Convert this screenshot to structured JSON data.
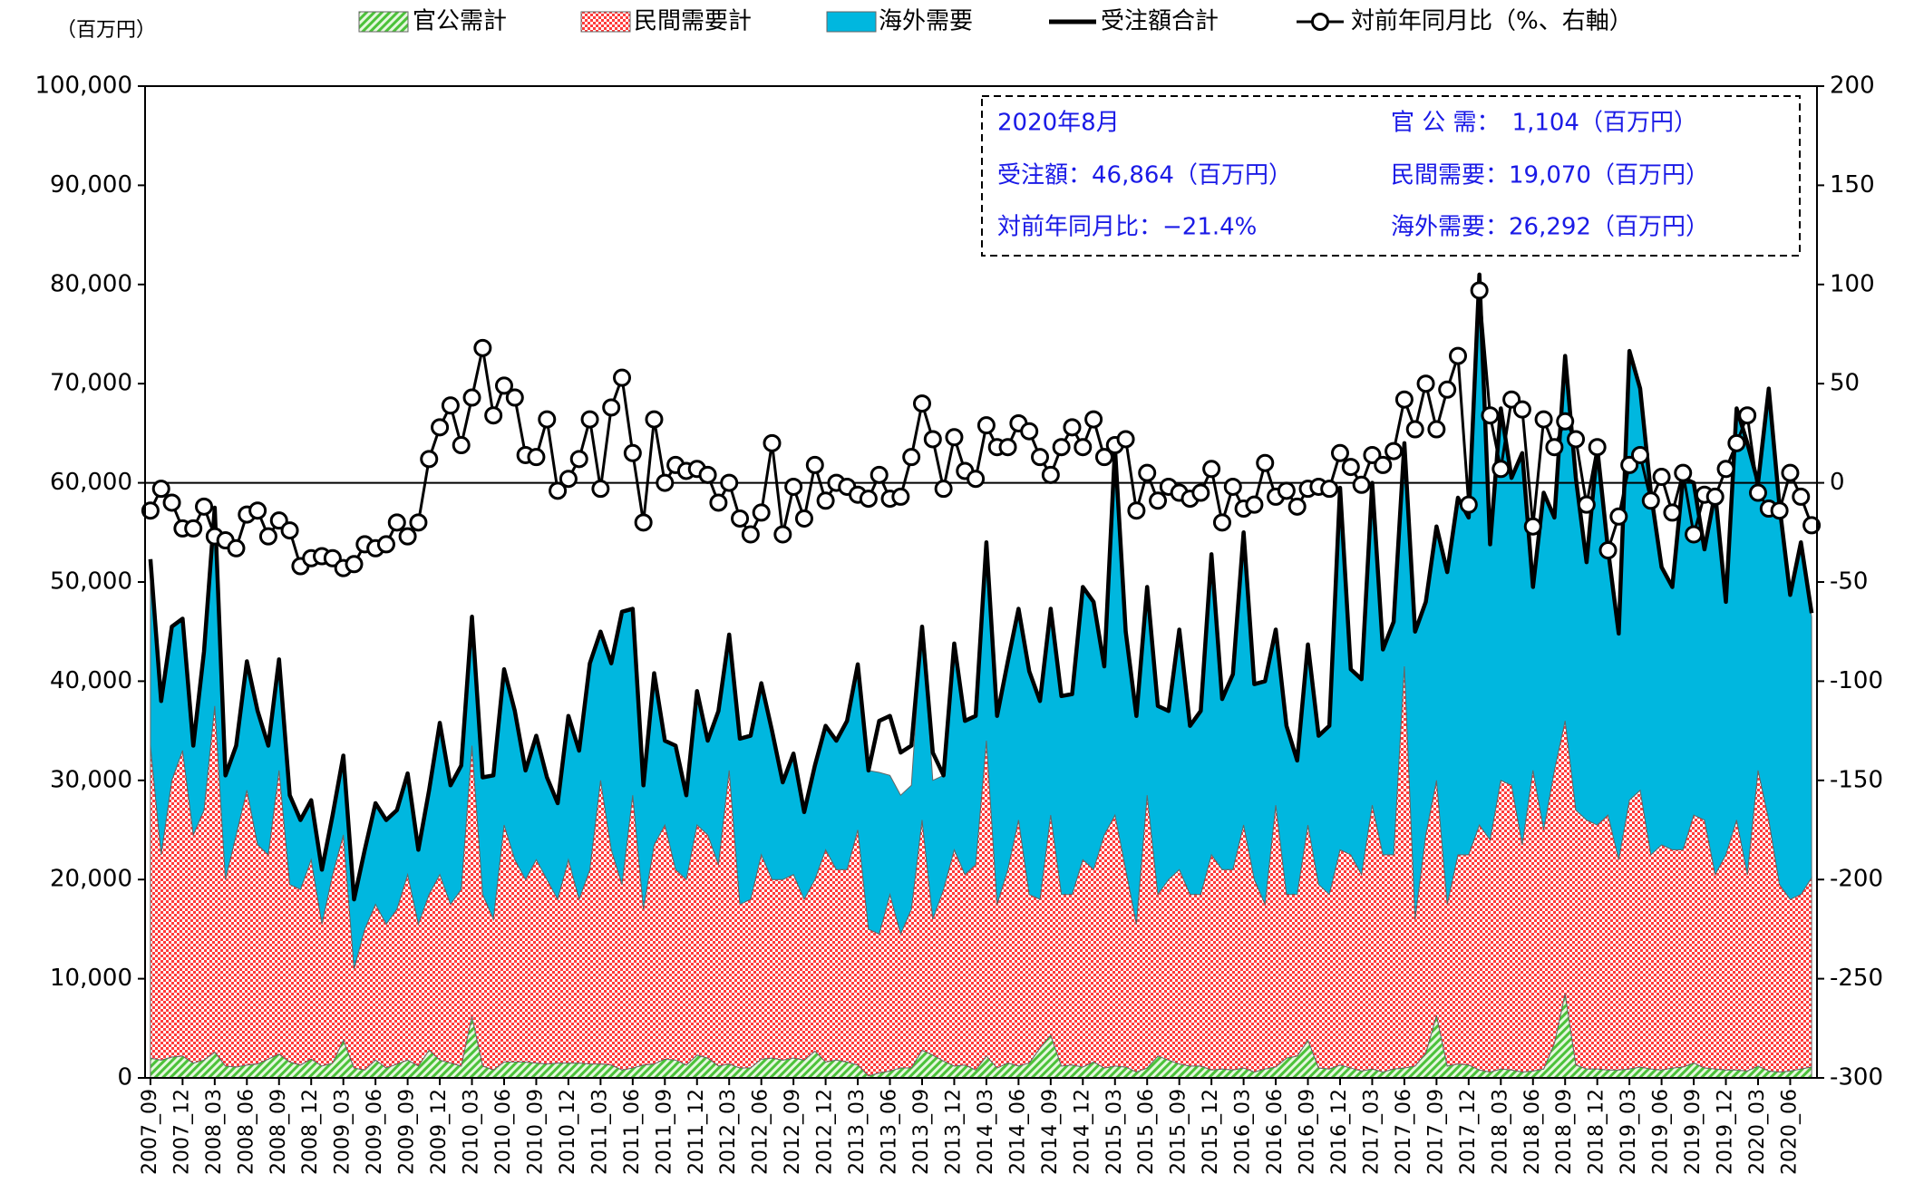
{
  "chart_data": {
    "type": "area",
    "y_label": "（百万円）",
    "categories": [
      "2007_09",
      null,
      null,
      "2007_12",
      null,
      null,
      "2008_03",
      null,
      null,
      "2008_06",
      null,
      null,
      "2008_09",
      null,
      null,
      "2008_12",
      null,
      null,
      "2009_03",
      null,
      null,
      "2009_06",
      null,
      null,
      "2009_09",
      null,
      null,
      "2009_12",
      null,
      null,
      "2010_03",
      null,
      null,
      "2010_06",
      null,
      null,
      "2010_09",
      null,
      null,
      "2010_12",
      null,
      null,
      "2011_03",
      null,
      null,
      "2011_06",
      null,
      null,
      "2011_09",
      null,
      null,
      "2011_12",
      null,
      null,
      "2012_03",
      null,
      null,
      "2012_06",
      null,
      null,
      "2012_09",
      null,
      null,
      "2012_12",
      null,
      null,
      "2013_03",
      null,
      null,
      "2013_06",
      null,
      null,
      "2013_09",
      null,
      null,
      "2013_12",
      null,
      null,
      "2014_03",
      null,
      null,
      "2014_06",
      null,
      null,
      "2014_09",
      null,
      null,
      "2014_12",
      null,
      null,
      "2015_03",
      null,
      null,
      "2015_06",
      null,
      null,
      "2015_09",
      null,
      null,
      "2015_12",
      null,
      null,
      "2016_03",
      null,
      null,
      "2016_06",
      null,
      null,
      "2016_09",
      null,
      null,
      "2016_12",
      null,
      null,
      "2017_03",
      null,
      null,
      "2017_06",
      null,
      null,
      "2017_09",
      null,
      null,
      "2017_12",
      null,
      null,
      "2018_03",
      null,
      null,
      "2018_06",
      null,
      null,
      "2018_09",
      null,
      null,
      "2018_12",
      null,
      null,
      "2019_03",
      null,
      null,
      "2019_06",
      null,
      null,
      "2019_09",
      null,
      null,
      "2019_12",
      null,
      null,
      "2020_03",
      null,
      null,
      "2020_06",
      null,
      null
    ],
    "series": [
      {
        "name": "官公需計",
        "type": "area",
        "color": "#4cc23a",
        "fill_pattern": "hatch",
        "values": [
          2000,
          1800,
          2100,
          2200,
          1500,
          1800,
          2600,
          1200,
          1100,
          1300,
          1400,
          1900,
          2400,
          1600,
          1300,
          1900,
          1200,
          1500,
          3800,
          1000,
          800,
          1800,
          1000,
          1400,
          1800,
          1200,
          2800,
          1800,
          1500,
          1200,
          6200,
          1200,
          800,
          1600,
          1600,
          1600,
          1500,
          1400,
          1500,
          1500,
          1500,
          1400,
          1400,
          1300,
          800,
          1000,
          1300,
          1400,
          1900,
          1800,
          1300,
          2300,
          2000,
          1200,
          1400,
          1000,
          1000,
          1900,
          2000,
          1800,
          2000,
          1800,
          2700,
          1600,
          1800,
          1600,
          1300,
          200,
          500,
          700,
          1000,
          1000,
          2800,
          2300,
          1700,
          1200,
          1300,
          800,
          2200,
          1000,
          1500,
          1200,
          1500,
          3000,
          4300,
          1200,
          1300,
          1100,
          1600,
          1000,
          1200,
          1100,
          600,
          1000,
          2200,
          1800,
          1400,
          1200,
          1200,
          800,
          900,
          800,
          1000,
          600,
          900,
          1100,
          2000,
          2200,
          3800,
          1000,
          900,
          1300,
          1000,
          700,
          900,
          600,
          900,
          1000,
          1200,
          2500,
          6300,
          1200,
          1400,
          1300,
          800,
          600,
          900,
          800,
          600,
          700,
          900,
          3500,
          8500,
          1300,
          900,
          900,
          800,
          800,
          900,
          1100,
          900,
          800,
          1000,
          1100,
          1500,
          1000,
          900,
          800,
          800,
          700,
          1200,
          700,
          600,
          700,
          900,
          1104
        ]
      },
      {
        "name": "民間需要計",
        "type": "area",
        "color": "#ff3b3b",
        "fill_pattern": "check",
        "values": [
          31500,
          20700,
          27900,
          30800,
          23000,
          25200,
          34900,
          18800,
          23400,
          27700,
          22100,
          20600,
          28600,
          17900,
          17700,
          20100,
          14300,
          19000,
          20700,
          10000,
          14200,
          15700,
          14500,
          15600,
          18700,
          14300,
          15700,
          18700,
          16000,
          17800,
          27300,
          17300,
          15200,
          23900,
          20400,
          18400,
          20500,
          18600,
          16500,
          20500,
          16500,
          19600,
          28600,
          21700,
          18700,
          27500,
          15700,
          22100,
          23600,
          19200,
          18700,
          23200,
          22500,
          20300,
          29600,
          16500,
          17000,
          20600,
          18000,
          18200,
          18500,
          16200,
          17300,
          21400,
          19200,
          19400,
          23700,
          14800,
          14000,
          17800,
          13500,
          16000,
          23200,
          13700,
          17300,
          21800,
          19200,
          20700,
          31800,
          16500,
          19500,
          24800,
          17000,
          15000,
          22200,
          17300,
          17200,
          20900,
          19400,
          23500,
          25300,
          19900,
          14900,
          27500,
          16300,
          18200,
          19600,
          17300,
          17300,
          21700,
          20100,
          20200,
          24500,
          19400,
          16600,
          26400,
          16500,
          16300,
          21700,
          18500,
          17600,
          21700,
          21500,
          19800,
          26600,
          21900,
          21600,
          40500,
          14800,
          22000,
          23700,
          16300,
          21100,
          21200,
          24700,
          23400,
          29100,
          28700,
          22900,
          30300,
          24100,
          27500,
          27500,
          25700,
          25100,
          24600,
          25700,
          21200,
          27100,
          27900,
          21600,
          22700,
          22000,
          21900,
          25000,
          25000,
          19600,
          21700,
          25200,
          19800,
          29800,
          25300,
          18900,
          17300,
          17600,
          19070
        ]
      },
      {
        "name": "海外需要",
        "type": "area",
        "color": "#00b7df",
        "values": [
          18800,
          15500,
          15500,
          13300,
          9000,
          16000,
          20000,
          10500,
          9000,
          13000,
          13500,
          11000,
          11200,
          9000,
          7000,
          6000,
          5500,
          6000,
          8000,
          7000,
          8000,
          10200,
          10500,
          10000,
          10200,
          7500,
          10500,
          15300,
          12000,
          12500,
          13000,
          11800,
          14500,
          15700,
          15000,
          11000,
          12500,
          10300,
          9700,
          14500,
          15000,
          20800,
          15000,
          18800,
          27500,
          18800,
          12500,
          17300,
          8500,
          12500,
          8500,
          13500,
          9500,
          15500,
          13700,
          16700,
          16500,
          17300,
          15000,
          9800,
          12200,
          8800,
          11500,
          12500,
          13000,
          15000,
          16700,
          16000,
          16300,
          12000,
          14000,
          12500,
          19500,
          14000,
          11500,
          20800,
          15500,
          15000,
          20000,
          19000,
          21000,
          21300,
          22500,
          20000,
          20800,
          20000,
          20200,
          27500,
          27000,
          17000,
          37000,
          24000,
          21000,
          21000,
          19000,
          17000,
          24200,
          17000,
          18500,
          30300,
          17200,
          19700,
          29500,
          19700,
          22500,
          17700,
          17000,
          13500,
          18200,
          15000,
          17000,
          36500,
          18700,
          19700,
          32500,
          20700,
          23500,
          22500,
          29000,
          23500,
          25600,
          33500,
          36000,
          34000,
          55500,
          29800,
          37500,
          31000,
          39500,
          18500,
          34000,
          25500,
          36800,
          33500,
          26000,
          38000,
          26800,
          22800,
          45300,
          40500,
          36500,
          28000,
          26500,
          37500,
          33500,
          27300,
          38500,
          25500,
          41500,
          43500,
          29000,
          43500,
          38200,
          30700,
          35500,
          26292
        ]
      },
      {
        "name": "受注額合計",
        "type": "line",
        "color": "#000000",
        "values": [
          52300,
          38000,
          45500,
          46300,
          33500,
          43000,
          57500,
          30500,
          33500,
          42000,
          37000,
          33500,
          42200,
          28500,
          26000,
          28000,
          21000,
          26500,
          32500,
          18000,
          23000,
          27700,
          26000,
          27000,
          30700,
          23000,
          29000,
          35800,
          29500,
          31500,
          46500,
          30300,
          30500,
          41200,
          37000,
          31000,
          34500,
          30300,
          27700,
          36500,
          33000,
          41800,
          45000,
          41800,
          47000,
          47300,
          29500,
          40800,
          34000,
          33500,
          28500,
          39000,
          34000,
          37000,
          44700,
          34200,
          34500,
          39800,
          35000,
          29800,
          32700,
          26800,
          31500,
          35500,
          34000,
          36000,
          41700,
          31000,
          36000,
          36500,
          32800,
          33500,
          45500,
          32800,
          30500,
          43800,
          36000,
          36500,
          54000,
          36500,
          42000,
          47300,
          41000,
          38000,
          47300,
          38500,
          38700,
          49500,
          48000,
          41500,
          63500,
          45000,
          36500,
          49500,
          37500,
          37000,
          45200,
          35500,
          37000,
          52800,
          38200,
          40700,
          55000,
          39700,
          40000,
          45200,
          35500,
          32000,
          43700,
          34500,
          35500,
          59500,
          41200,
          40200,
          60000,
          43200,
          46000,
          64000,
          45000,
          48000,
          55600,
          51000,
          58500,
          56500,
          81000,
          53800,
          67500,
          60500,
          63000,
          49500,
          59000,
          56500,
          72800,
          60500,
          52000,
          63500,
          53300,
          44800,
          73300,
          69500,
          59000,
          51500,
          49500,
          60500,
          60000,
          53300,
          59000,
          48000,
          67500,
          64000,
          60000,
          69500,
          57700,
          48700,
          54000,
          46864
        ]
      },
      {
        "name": "対前年同月比（%、右軸）",
        "type": "line",
        "axis": "y2",
        "color": "#000000",
        "marker": "circle",
        "values": [
          -14,
          -3,
          -10,
          -23,
          -23,
          -12,
          -27,
          -29,
          -33,
          -16,
          -14,
          -27,
          -19,
          -24,
          -42,
          -38,
          -37,
          -38,
          -43,
          -41,
          -31,
          -33,
          -31,
          -20,
          -27,
          -20,
          12,
          28,
          39,
          19,
          43,
          68,
          34,
          49,
          43,
          14,
          13,
          32,
          -4,
          2,
          12,
          32,
          -3,
          38,
          53,
          15,
          -20,
          32,
          0,
          9,
          6,
          7,
          4,
          -10,
          0,
          -18,
          -26,
          -15,
          20,
          -26,
          -2,
          -18,
          9,
          -9,
          0,
          -2,
          -6,
          -8,
          4,
          -8,
          -7,
          13,
          40,
          22,
          -3,
          23,
          6,
          2,
          29,
          18,
          18,
          30,
          26,
          13,
          4,
          18,
          28,
          18,
          32,
          13,
          19,
          22,
          -14,
          5,
          -9,
          -2,
          -5,
          -8,
          -5,
          7,
          -20,
          -2,
          -13,
          -11,
          10,
          -7,
          -4,
          -12,
          -3,
          -2,
          -3,
          15,
          8,
          -1,
          14,
          9,
          16,
          42,
          27,
          50,
          27,
          47,
          64,
          -11,
          97,
          34,
          7,
          42,
          37,
          -22,
          32,
          18,
          31,
          22,
          -11,
          18,
          -34,
          -17,
          9,
          14,
          -9,
          3,
          -15,
          5,
          -26,
          -6,
          -7,
          7,
          20,
          34,
          -5,
          -13,
          -14,
          5,
          -7,
          -21.4
        ]
      }
    ],
    "stacked": true,
    "ylim": [
      0,
      100000
    ],
    "yticks": [
      0,
      {
        "value": 10000,
        "label": "10,000"
      },
      {
        "value": 20000,
        "label": "20,000"
      },
      {
        "value": 30000,
        "label": "30,000"
      },
      {
        "value": 40000,
        "label": "40,000"
      },
      {
        "value": 50000,
        "label": "50,000"
      },
      {
        "value": 60000,
        "label": "60,000"
      },
      {
        "value": 70000,
        "label": "70,000"
      },
      {
        "value": 80000,
        "label": "80,000"
      },
      {
        "value": 90000,
        "label": "90,000"
      },
      {
        "value": 100000,
        "label": "100,000"
      }
    ],
    "y2lim": [
      -300,
      200
    ],
    "y2ticks": [
      -300,
      -250,
      -200,
      -150,
      -100,
      -50,
      0,
      50,
      100,
      150,
      200
    ],
    "y2_zero_line": true,
    "grid": false,
    "legend": "top",
    "annotations": [
      "2020年8月",
      "受注額：46,864（百万円）",
      "対前年同月比：−21.4%",
      "官 公 需：　1,104（百万円）",
      "民間需要：19,070（百万円）",
      "海外需要：26,292（百万円）"
    ],
    "annotation_color": "#1a1ae6"
  }
}
